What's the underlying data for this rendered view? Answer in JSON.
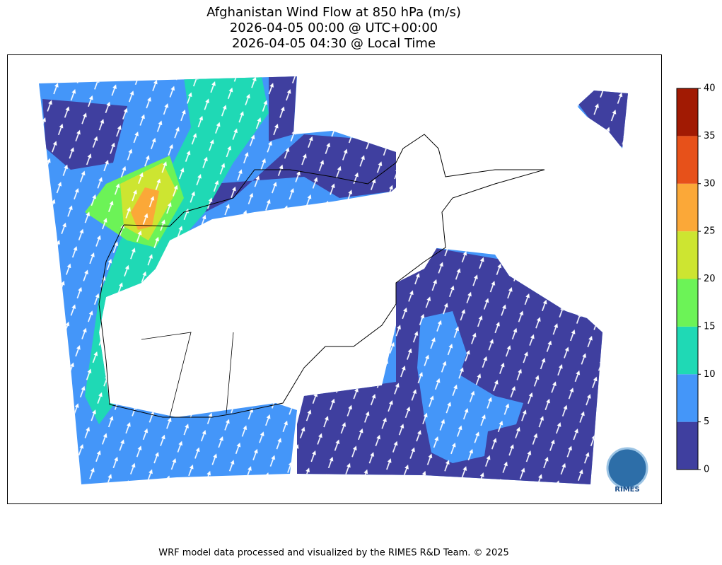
{
  "title": [
    "Afghanistan Wind Flow at 850 hPa (m/s)",
    "2026-04-05 00:00 @ UTC+00:00",
    "2026-04-05 04:30 @ Local Time"
  ],
  "colorbar": {
    "lim": [
      0,
      40
    ],
    "ticks": [
      0,
      5,
      10,
      15,
      20,
      25,
      30,
      35,
      40
    ],
    "colors": [
      "#3f3f9f",
      "#4496f9",
      "#1fd9b5",
      "#6cf357",
      "#cde531",
      "#fba838",
      "#e7511a",
      "#a11a03"
    ]
  },
  "logo": "RIMES",
  "footer": "WRF model data processed and visualized by the RIMES R&D Team. © 2025"
}
